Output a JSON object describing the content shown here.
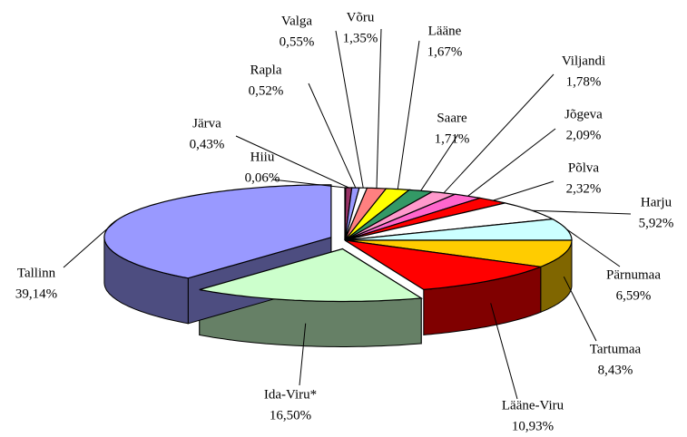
{
  "chart_data": {
    "type": "pie3d",
    "categories": [
      "Hiiu",
      "Järva",
      "Rapla",
      "Valga",
      "Võru",
      "Lääne",
      "Saare",
      "Viljandi",
      "Jõgeva",
      "Põlva",
      "Harju",
      "Pärnumaa",
      "Tartumaa",
      "Lääne-Viru",
      "Ida-Viru*",
      "Tallinn"
    ],
    "values": [
      0.06,
      0.43,
      0.52,
      0.55,
      1.35,
      1.67,
      1.71,
      1.78,
      2.09,
      2.32,
      5.92,
      6.59,
      8.43,
      10.93,
      16.5,
      39.14
    ],
    "value_labels": [
      "0,06%",
      "0,43%",
      "0,52%",
      "0,55%",
      "1,35%",
      "1,67%",
      "1,71%",
      "1,78%",
      "2,09%",
      "2,32%",
      "5,92%",
      "6,59%",
      "8,43%",
      "10,93%",
      "16,50%",
      "39,14%"
    ],
    "colors": [
      "#000080",
      "#993366",
      "#9999ff",
      "#ffffff",
      "#ff8080",
      "#ffff00",
      "#339966",
      "#ff99cc",
      "#ff66cc",
      "#ff0000",
      "#ffffff",
      "#ccffff",
      "#ffcc00",
      "#ff0000",
      "#ccffcc",
      "#9999ff"
    ],
    "exploded": [
      "Ida-Viru*",
      "Tallinn"
    ]
  }
}
